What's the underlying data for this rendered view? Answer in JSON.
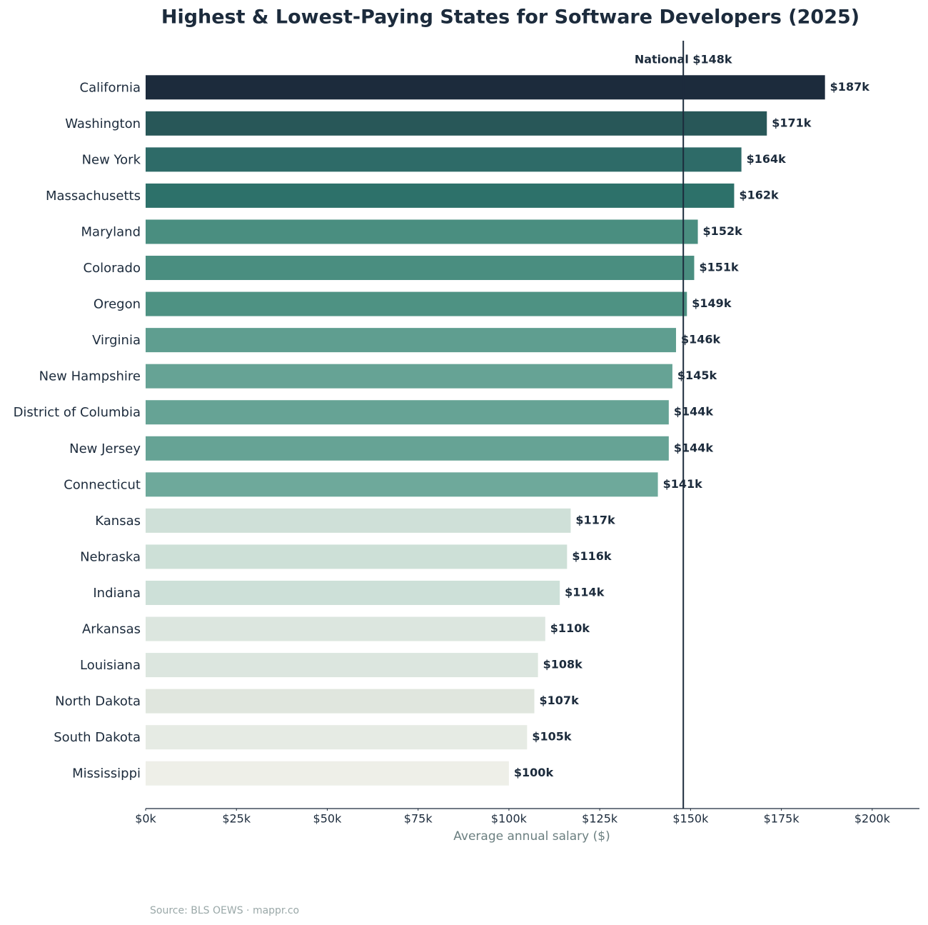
{
  "chart_data": {
    "type": "bar",
    "orientation": "horizontal",
    "title": "Highest & Lowest-Paying States for Software Developers (2025)",
    "x_label": "Average annual salary ($)",
    "source": "Source: BLS OEWS · mappr.co",
    "categories": [
      "California",
      "Washington",
      "New York",
      "Massachusetts",
      "Maryland",
      "Colorado",
      "Oregon",
      "Virginia",
      "New Hampshire",
      "District of Columbia",
      "New Jersey",
      "Connecticut",
      "Kansas",
      "Nebraska",
      "Indiana",
      "Arkansas",
      "Louisiana",
      "North Dakota",
      "South Dakota",
      "Mississippi"
    ],
    "values": [
      187000,
      171000,
      164000,
      162000,
      152000,
      151000,
      149000,
      146000,
      145000,
      144000,
      144000,
      141000,
      117000,
      116000,
      114000,
      110000,
      108000,
      107000,
      105000,
      100000
    ],
    "value_labels": [
      "$187k",
      "$171k",
      "$164k",
      "$162k",
      "$152k",
      "$151k",
      "$149k",
      "$146k",
      "$145k",
      "$144k",
      "$144k",
      "$141k",
      "$117k",
      "$116k",
      "$114k",
      "$110k",
      "$108k",
      "$107k",
      "$105k",
      "$100k"
    ],
    "colors": [
      "#1c2b3c",
      "#285758",
      "#2e6b68",
      "#2d716a",
      "#4a8e80",
      "#4a8e80",
      "#4e9283",
      "#5f9e90",
      "#66a395",
      "#66a395",
      "#66a395",
      "#6ea99b",
      "#cfe0d8",
      "#cde0d7",
      "#cde0d8",
      "#dce6df",
      "#dce6df",
      "#e0e6de",
      "#e6ebe4",
      "#eeefe8"
    ],
    "xlim": [
      0,
      213000
    ],
    "xticks": [
      {
        "value": 0,
        "label": "$0k"
      },
      {
        "value": 25000,
        "label": "$25k"
      },
      {
        "value": 50000,
        "label": "$50k"
      },
      {
        "value": 75000,
        "label": "$75k"
      },
      {
        "value": 100000,
        "label": "$100k"
      },
      {
        "value": 125000,
        "label": "$125k"
      },
      {
        "value": 150000,
        "label": "$150k"
      },
      {
        "value": 175000,
        "label": "$175k"
      },
      {
        "value": 200000,
        "label": "$200k"
      }
    ],
    "reference_line": {
      "value": 148000,
      "label": "National $148k",
      "color": "#1c2b3c"
    },
    "grid": false
  }
}
